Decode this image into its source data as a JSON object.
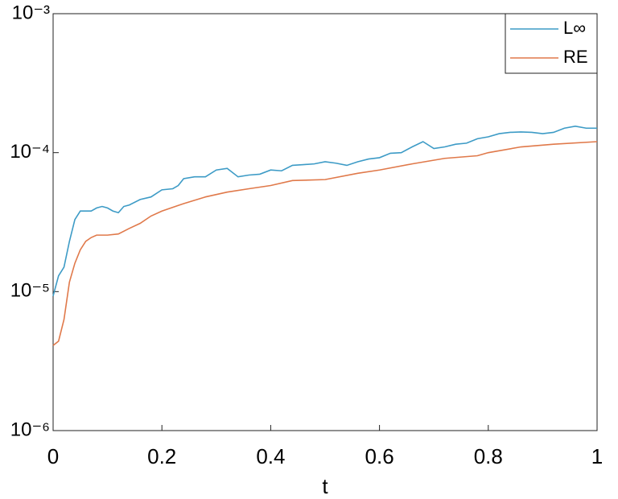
{
  "chart_data": {
    "type": "line",
    "xlabel": "t",
    "xlim": [
      0,
      1
    ],
    "xticks": [
      0,
      0.2,
      0.4,
      0.6,
      0.8,
      1
    ],
    "ylim": [
      1e-06,
      0.001
    ],
    "ylog": true,
    "yticks": [
      {
        "value": 1e-06,
        "label": "10⁻⁶"
      },
      {
        "value": 1e-05,
        "label": "10⁻⁵"
      },
      {
        "value": 0.0001,
        "label": "10⁻⁴"
      },
      {
        "value": 0.001,
        "label": "10⁻³"
      }
    ],
    "legend": "upper right",
    "series": [
      {
        "name": "L∞",
        "color": "#3d9bc6",
        "x": [
          0,
          0.01,
          0.02,
          0.03,
          0.04,
          0.05,
          0.07,
          0.08,
          0.09,
          0.1,
          0.11,
          0.12,
          0.13,
          0.14,
          0.16,
          0.18,
          0.2,
          0.22,
          0.23,
          0.24,
          0.26,
          0.28,
          0.3,
          0.32,
          0.34,
          0.36,
          0.38,
          0.4,
          0.42,
          0.44,
          0.46,
          0.48,
          0.5,
          0.52,
          0.54,
          0.56,
          0.58,
          0.6,
          0.62,
          0.64,
          0.66,
          0.68,
          0.7,
          0.72,
          0.74,
          0.76,
          0.78,
          0.8,
          0.82,
          0.84,
          0.86,
          0.88,
          0.9,
          0.92,
          0.94,
          0.96,
          0.98,
          1
        ],
        "values": [
          9.3e-06,
          1.3e-05,
          1.5e-05,
          2.3e-05,
          3.3e-05,
          3.8e-05,
          3.8e-05,
          4e-05,
          4.1e-05,
          4e-05,
          3.8e-05,
          3.7e-05,
          4.1e-05,
          4.2e-05,
          4.6e-05,
          4.8e-05,
          5.4e-05,
          5.5e-05,
          5.8e-05,
          6.5e-05,
          6.7e-05,
          6.7e-05,
          7.5e-05,
          7.7e-05,
          6.7e-05,
          6.9e-05,
          7e-05,
          7.5e-05,
          7.4e-05,
          8.1e-05,
          8.2e-05,
          8.3e-05,
          8.6e-05,
          8.4e-05,
          8.1e-05,
          8.6e-05,
          9e-05,
          9.2e-05,
          9.9e-05,
          0.0001,
          0.00011,
          0.00012,
          0.000107,
          0.00011,
          0.000115,
          0.000117,
          0.000126,
          0.00013,
          0.000137,
          0.00014,
          0.000141,
          0.00014,
          0.000137,
          0.00014,
          0.00015,
          0.000155,
          0.00015,
          0.00015
        ]
      },
      {
        "name": "RE",
        "color": "#e0794a",
        "x": [
          0,
          0.01,
          0.02,
          0.03,
          0.04,
          0.05,
          0.06,
          0.07,
          0.08,
          0.1,
          0.12,
          0.14,
          0.16,
          0.18,
          0.2,
          0.24,
          0.28,
          0.32,
          0.36,
          0.4,
          0.44,
          0.5,
          0.56,
          0.6,
          0.66,
          0.72,
          0.78,
          0.8,
          0.86,
          0.92,
          1
        ],
        "values": [
          4.1e-06,
          4.4e-06,
          6.3e-06,
          1.17e-05,
          1.6e-05,
          2e-05,
          2.3e-05,
          2.45e-05,
          2.55e-05,
          2.55e-05,
          2.6e-05,
          2.85e-05,
          3.1e-05,
          3.5e-05,
          3.8e-05,
          4.3e-05,
          4.8e-05,
          5.2e-05,
          5.5e-05,
          5.8e-05,
          6.3e-05,
          6.4e-05,
          7.1e-05,
          7.5e-05,
          8.3e-05,
          9.1e-05,
          9.5e-05,
          0.0001,
          0.00011,
          0.000115,
          0.00012
        ]
      }
    ]
  }
}
